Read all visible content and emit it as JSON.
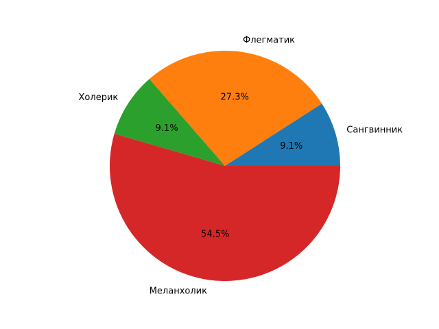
{
  "chart_data": {
    "type": "pie",
    "title": "",
    "slices": [
      {
        "label": "Сангвинник",
        "value": 9.1,
        "pct_label": "9.1%",
        "color": "#1f77b4"
      },
      {
        "label": "Флегматик",
        "value": 27.3,
        "pct_label": "27.3%",
        "color": "#ff7f0e"
      },
      {
        "label": "Холерик",
        "value": 9.1,
        "pct_label": "9.1%",
        "color": "#2ca02c"
      },
      {
        "label": "Меланхолик",
        "value": 54.5,
        "pct_label": "54.5%",
        "color": "#d62728"
      }
    ],
    "start_angle_deg": 0,
    "direction": "counterclockwise",
    "legend": "none"
  }
}
